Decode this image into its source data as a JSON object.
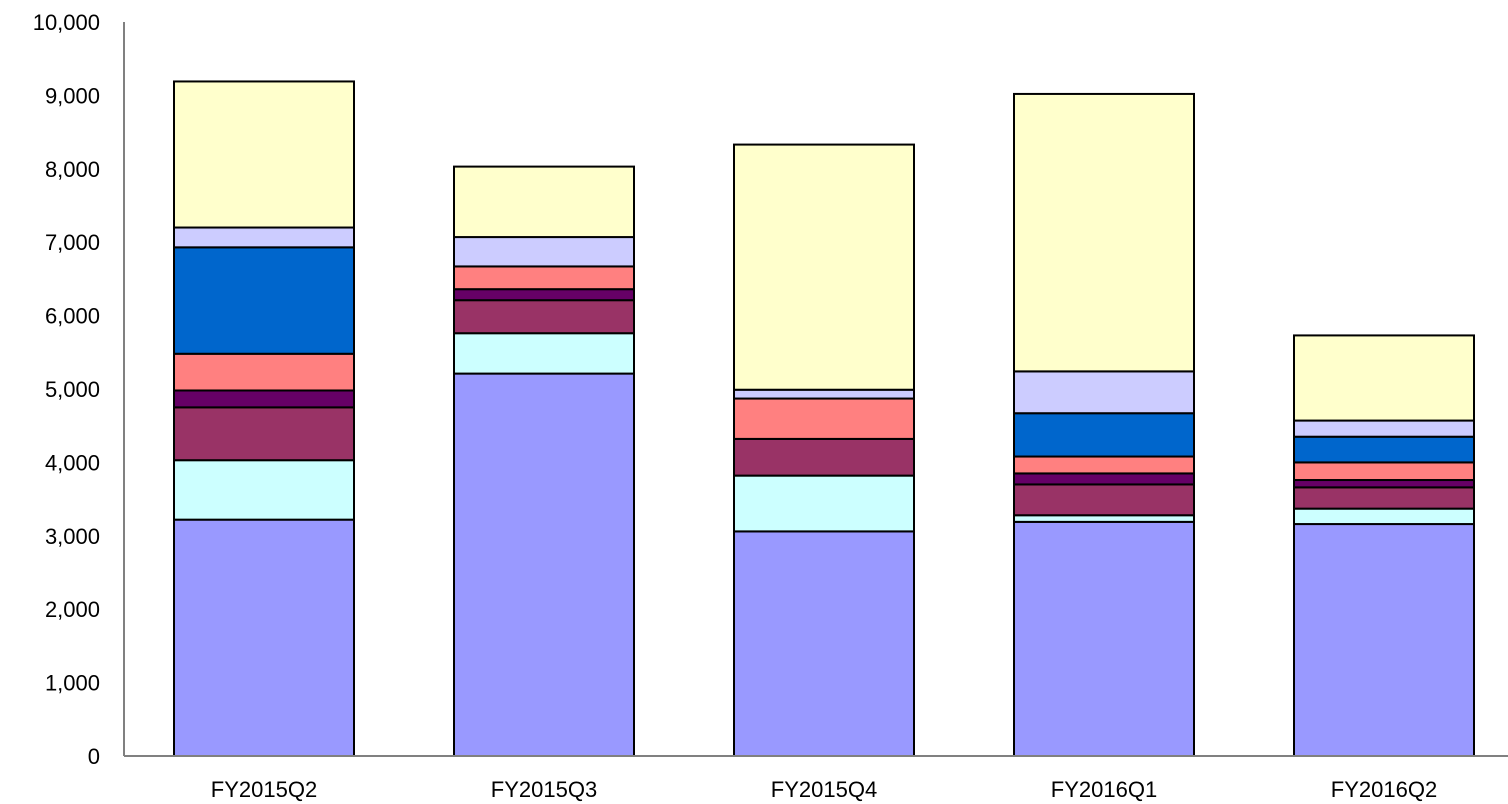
{
  "chart_data": {
    "type": "bar",
    "stacked": true,
    "title": "",
    "xlabel": "",
    "ylabel": "",
    "ylim": [
      0,
      10000
    ],
    "yticks": [
      0,
      1000,
      2000,
      3000,
      4000,
      5000,
      6000,
      7000,
      8000,
      9000,
      10000
    ],
    "ytick_labels": [
      "0",
      "1,000",
      "2,000",
      "3,000",
      "4,000",
      "5,000",
      "6,000",
      "7,000",
      "8,000",
      "9,000",
      "10,000"
    ],
    "grid": false,
    "legend": "none",
    "categories": [
      "FY2015Q2",
      "FY2015Q3",
      "FY2015Q4",
      "FY2016Q1",
      "FY2016Q2"
    ],
    "series": [
      {
        "color": "#9999FF",
        "values": [
          3220,
          5210,
          3060,
          3190,
          3160
        ]
      },
      {
        "color": "#CCFFFF",
        "values": [
          810,
          550,
          760,
          90,
          210
        ]
      },
      {
        "color": "#993366",
        "values": [
          720,
          450,
          500,
          420,
          290
        ]
      },
      {
        "color": "#660066",
        "values": [
          230,
          150,
          0,
          150,
          100
        ]
      },
      {
        "color": "#FF8080",
        "values": [
          500,
          310,
          550,
          230,
          240
        ]
      },
      {
        "color": "#0066CC",
        "values": [
          1450,
          0,
          0,
          590,
          350
        ]
      },
      {
        "color": "#CCCCFF",
        "values": [
          270,
          400,
          120,
          570,
          220
        ]
      },
      {
        "color": "#FFFFCC",
        "values": [
          1990,
          960,
          3340,
          3780,
          1160
        ]
      }
    ]
  }
}
